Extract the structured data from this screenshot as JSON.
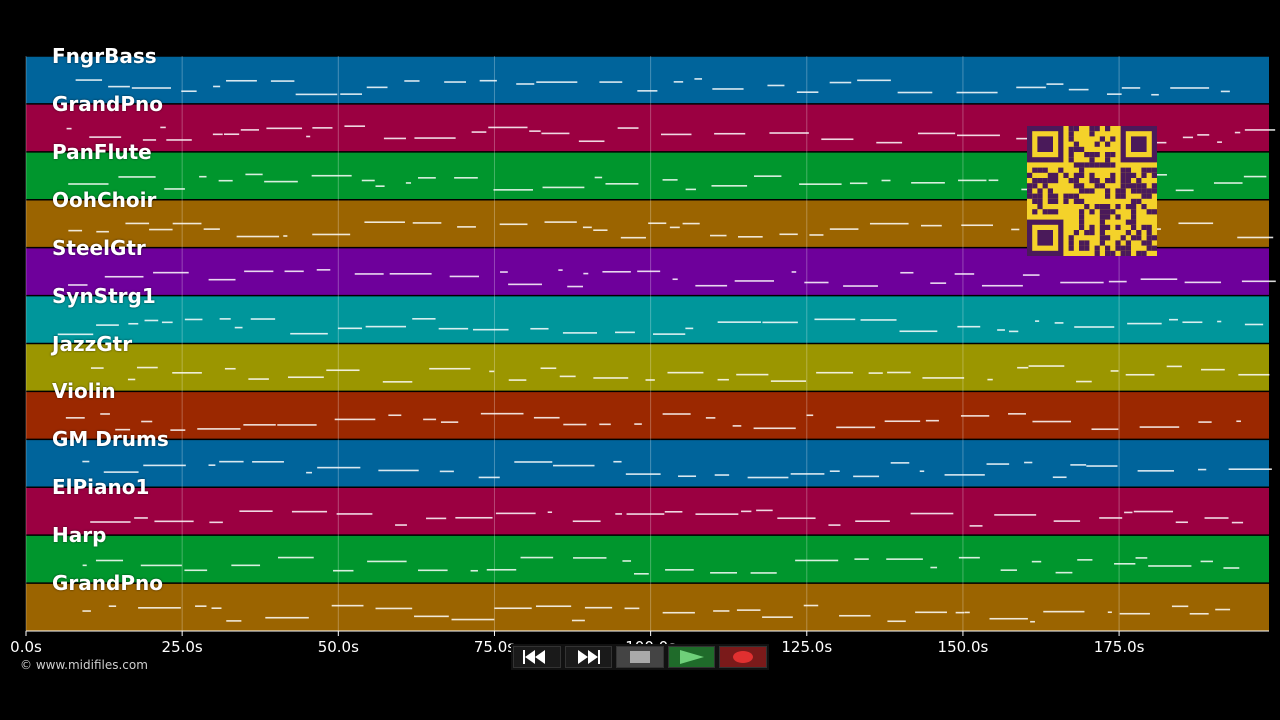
{
  "tracks": [
    {
      "name": "FngrBass",
      "color": "#00649b"
    },
    {
      "name": "GrandPno",
      "color": "#9b0041"
    },
    {
      "name": "PanFlute",
      "color": "#00962d"
    },
    {
      "name": "OohChoir",
      "color": "#9b6400"
    },
    {
      "name": "SteelGtr",
      "color": "#6e009b"
    },
    {
      "name": "SynStrg1",
      "color": "#00969b"
    },
    {
      "name": "JazzGtr",
      "color": "#9b9600"
    },
    {
      "name": "Violin",
      "color": "#9b2800"
    },
    {
      "name": "GM Drums",
      "color": "#00649b"
    },
    {
      "name": "ElPiano1",
      "color": "#9b0041"
    },
    {
      "name": "Harp",
      "color": "#00962d"
    },
    {
      "name": "GrandPno",
      "color": "#9b6400"
    }
  ],
  "timeline": {
    "max_seconds": 199,
    "ticks": [
      {
        "value": 0,
        "label": "0.0s"
      },
      {
        "value": 25,
        "label": "25.0s"
      },
      {
        "value": 50,
        "label": "50.0s"
      },
      {
        "value": 75,
        "label": "75.0s"
      },
      {
        "value": 100,
        "label": "100.0s"
      },
      {
        "value": 125,
        "label": "125.0s"
      },
      {
        "value": 150,
        "label": "150.0s"
      },
      {
        "value": 175,
        "label": "175.0s"
      }
    ]
  },
  "footer": {
    "copyright": "© www.midifiles.com"
  },
  "transport": {
    "rewind": "rewind-icon",
    "fast_forward": "fast-forward-icon",
    "stop": "stop-icon",
    "play": "play-icon",
    "record": "record-icon",
    "play_color": "#2f9e3f",
    "record_color": "#e03030"
  },
  "qr": {
    "color_fg": "#4a1a5a",
    "color_bg": "#f4d22a"
  }
}
